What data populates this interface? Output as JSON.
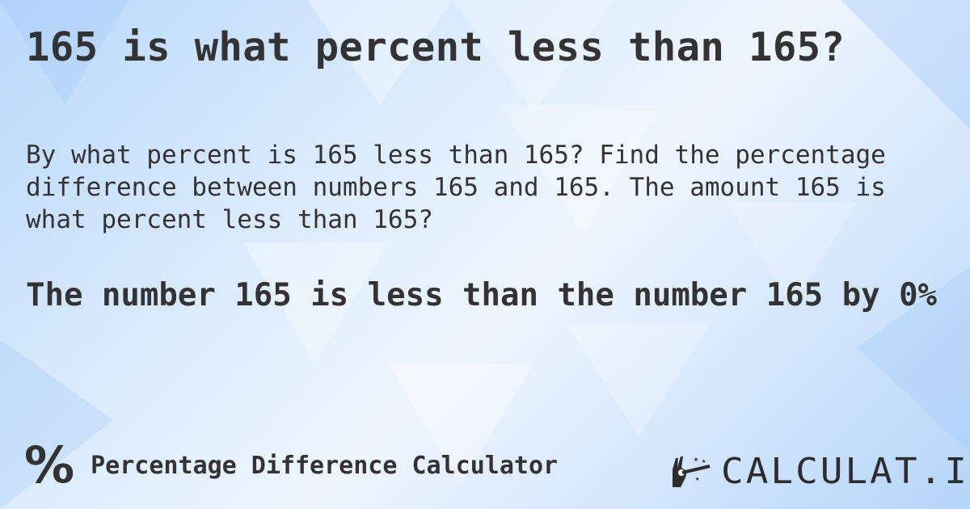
{
  "title": "165 is what percent less than 165?",
  "description": "By what percent is 165 less than 165? Find the percentage difference between numbers 165 and 165. The amount 165 is what percent less than 165?",
  "answer": "The number 165 is less than the number 165 by 0%",
  "footer": {
    "icon": "percent-icon",
    "icon_glyph": "%",
    "calculator_name": "Percentage Difference Calculator"
  },
  "logo": {
    "text": "CALCULAT.IO",
    "icon": "magic-hand-wand-icon"
  },
  "colors": {
    "text": "#333333",
    "background": "#cfe4fc"
  }
}
